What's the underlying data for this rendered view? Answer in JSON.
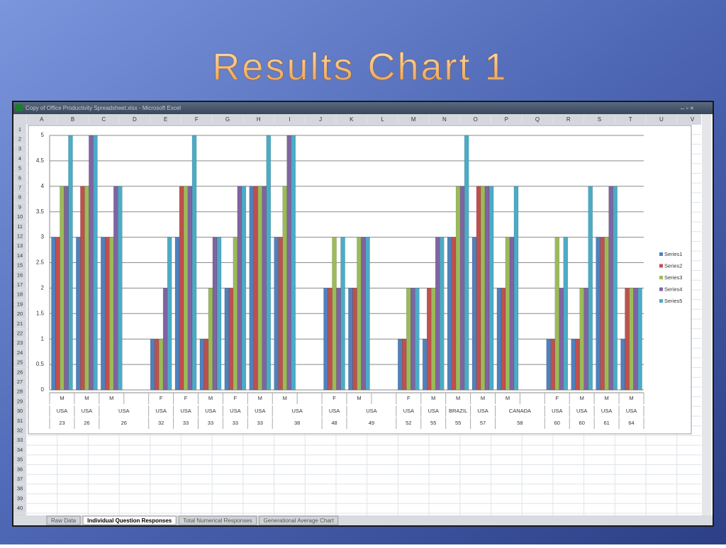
{
  "slide_title": "Results Chart 1",
  "window": {
    "title": "Copy of Office Productivity Spreadsheet.xlsx - Microsoft Excel"
  },
  "columns": [
    "A",
    "B",
    "C",
    "D",
    "E",
    "F",
    "G",
    "H",
    "I",
    "J",
    "K",
    "L",
    "M",
    "N",
    "O",
    "P",
    "Q",
    "R",
    "S",
    "T",
    "U",
    "V"
  ],
  "rows": [
    1,
    2,
    3,
    4,
    5,
    6,
    7,
    8,
    9,
    10,
    11,
    12,
    13,
    14,
    15,
    16,
    17,
    18,
    19,
    20,
    21,
    22,
    23,
    24,
    25,
    26,
    27,
    28,
    29,
    30,
    31,
    32,
    33,
    34,
    35,
    36,
    37,
    38,
    39,
    40
  ],
  "sheet_tabs": [
    "Raw Data",
    "Individual Question Responses",
    "Total Numerical Responses",
    "Generational Average Chart"
  ],
  "chart_data": {
    "type": "bar",
    "categories": [
      "M",
      "M",
      "M",
      null,
      "F",
      "F",
      "M",
      "F",
      "M",
      "M",
      null,
      "F",
      "M",
      null,
      "F",
      "M",
      "M",
      "M",
      "M",
      null,
      "F",
      "M",
      "M",
      "M"
    ],
    "country": [
      "USA",
      "USA",
      "USA",
      null,
      "USA",
      "USA",
      "USA",
      "USA",
      "USA",
      "USA",
      null,
      "USA",
      "USA",
      null,
      "USA",
      "USA",
      "BRAZIL",
      "USA",
      "CANADA",
      null,
      "USA",
      "USA",
      "USA",
      "USA"
    ],
    "age": [
      23,
      26,
      26,
      null,
      32,
      33,
      33,
      33,
      33,
      38,
      null,
      48,
      49,
      null,
      52,
      55,
      55,
      57,
      58,
      null,
      60,
      60,
      61,
      64
    ],
    "ylim": [
      0,
      5
    ],
    "yticks": [
      0,
      0.5,
      1,
      1.5,
      2,
      2.5,
      3,
      3.5,
      4,
      4.5,
      5
    ],
    "grid": true,
    "legend": "right",
    "series": [
      {
        "name": "Series1",
        "color": "#4f81bd",
        "values": [
          3,
          3,
          3,
          null,
          1,
          3,
          1,
          2,
          4,
          3,
          null,
          2,
          2,
          null,
          1,
          1,
          3,
          3,
          2,
          null,
          1,
          1,
          3,
          1
        ]
      },
      {
        "name": "Series2",
        "color": "#c0504d",
        "values": [
          3,
          4,
          3,
          null,
          1,
          4,
          1,
          2,
          4,
          3,
          null,
          2,
          2,
          null,
          1,
          2,
          3,
          4,
          2,
          null,
          1,
          1,
          3,
          2
        ]
      },
      {
        "name": "Series3",
        "color": "#9bbb59",
        "values": [
          4,
          4,
          3,
          null,
          1,
          4,
          2,
          3,
          4,
          4,
          null,
          3,
          3,
          null,
          2,
          2,
          4,
          4,
          3,
          null,
          3,
          2,
          3,
          2
        ]
      },
      {
        "name": "Series4",
        "color": "#8064a2",
        "values": [
          4,
          5,
          4,
          null,
          2,
          4,
          3,
          4,
          4,
          5,
          null,
          2,
          3,
          null,
          2,
          3,
          4,
          4,
          3,
          null,
          2,
          2,
          4,
          2
        ]
      },
      {
        "name": "Series5",
        "color": "#4bacc6",
        "values": [
          5,
          5,
          4,
          null,
          3,
          5,
          3,
          4,
          5,
          5,
          null,
          3,
          3,
          null,
          2,
          3,
          5,
          4,
          4,
          null,
          3,
          4,
          4,
          2
        ]
      }
    ]
  }
}
